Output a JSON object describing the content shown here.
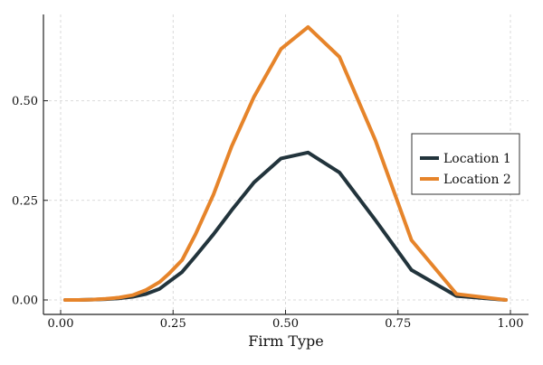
{
  "chart_data": {
    "type": "line",
    "title": "",
    "xlabel": "Firm Type",
    "ylabel": "",
    "xlim": [
      0.0,
      1.0
    ],
    "ylim": [
      0.0,
      0.72
    ],
    "x_ticks": [
      0.0,
      0.25,
      0.5,
      0.75,
      1.0
    ],
    "x_tick_labels": [
      "0.00",
      "0.25",
      "0.50",
      "0.75",
      "1.00"
    ],
    "y_ticks": [
      0.0,
      0.25,
      0.5
    ],
    "y_tick_labels": [
      "0.00",
      "0.25",
      "0.50"
    ],
    "grid": true,
    "legend_position": "right",
    "x": [
      0.01,
      0.04,
      0.07,
      0.1,
      0.13,
      0.16,
      0.19,
      0.22,
      0.24,
      0.27,
      0.3,
      0.34,
      0.38,
      0.43,
      0.49,
      0.55,
      0.62,
      0.7,
      0.78,
      0.88,
      0.99
    ],
    "series": [
      {
        "name": "Location 1",
        "color": "#22343c",
        "values": [
          0.0,
          0.0,
          0.001,
          0.002,
          0.004,
          0.008,
          0.015,
          0.028,
          0.045,
          0.07,
          0.11,
          0.165,
          0.225,
          0.295,
          0.355,
          0.37,
          0.32,
          0.2,
          0.075,
          0.01,
          0.0
        ]
      },
      {
        "name": "Location 2",
        "color": "#e6842a",
        "values": [
          0.0,
          0.0,
          0.001,
          0.003,
          0.006,
          0.012,
          0.025,
          0.045,
          0.065,
          0.1,
          0.165,
          0.265,
          0.385,
          0.51,
          0.63,
          0.685,
          0.61,
          0.4,
          0.15,
          0.015,
          0.0
        ]
      }
    ]
  }
}
